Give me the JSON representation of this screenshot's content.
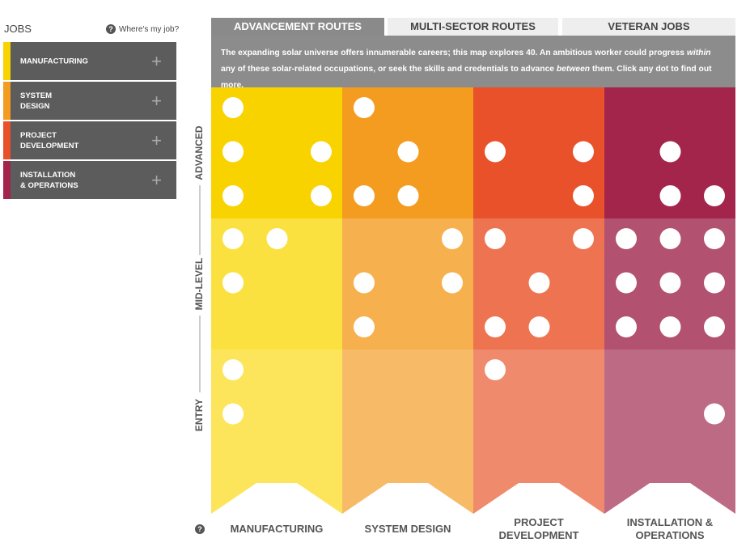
{
  "sidebar": {
    "title": "JOBS",
    "help": "Where's my job?",
    "items": [
      "MANUFACTURING",
      "SYSTEM DESIGN",
      "PROJECT DEVELOPMENT",
      "INSTALLATION & OPERATIONS"
    ]
  },
  "tabs": [
    "ADVANCEMENT ROUTES",
    "MULTI-SECTOR ROUTES",
    "VETERAN JOBS"
  ],
  "description": [
    "The expanding solar universe offers innumerable careers; this map explores 40. An ambitious worker could progress ",
    "within",
    " any of these solar-related occupations, or seek the skills and credentials to advance ",
    "between",
    " them. Click any dot to find out more."
  ],
  "levels": [
    "ADVANCED",
    "MID-LEVEL",
    "ENTRY"
  ],
  "columns": [
    "MANUFACTURING",
    "SYSTEM DESIGN",
    "PROJECT DEVELOPMENT",
    "INSTALLATION & OPERATIONS"
  ]
}
